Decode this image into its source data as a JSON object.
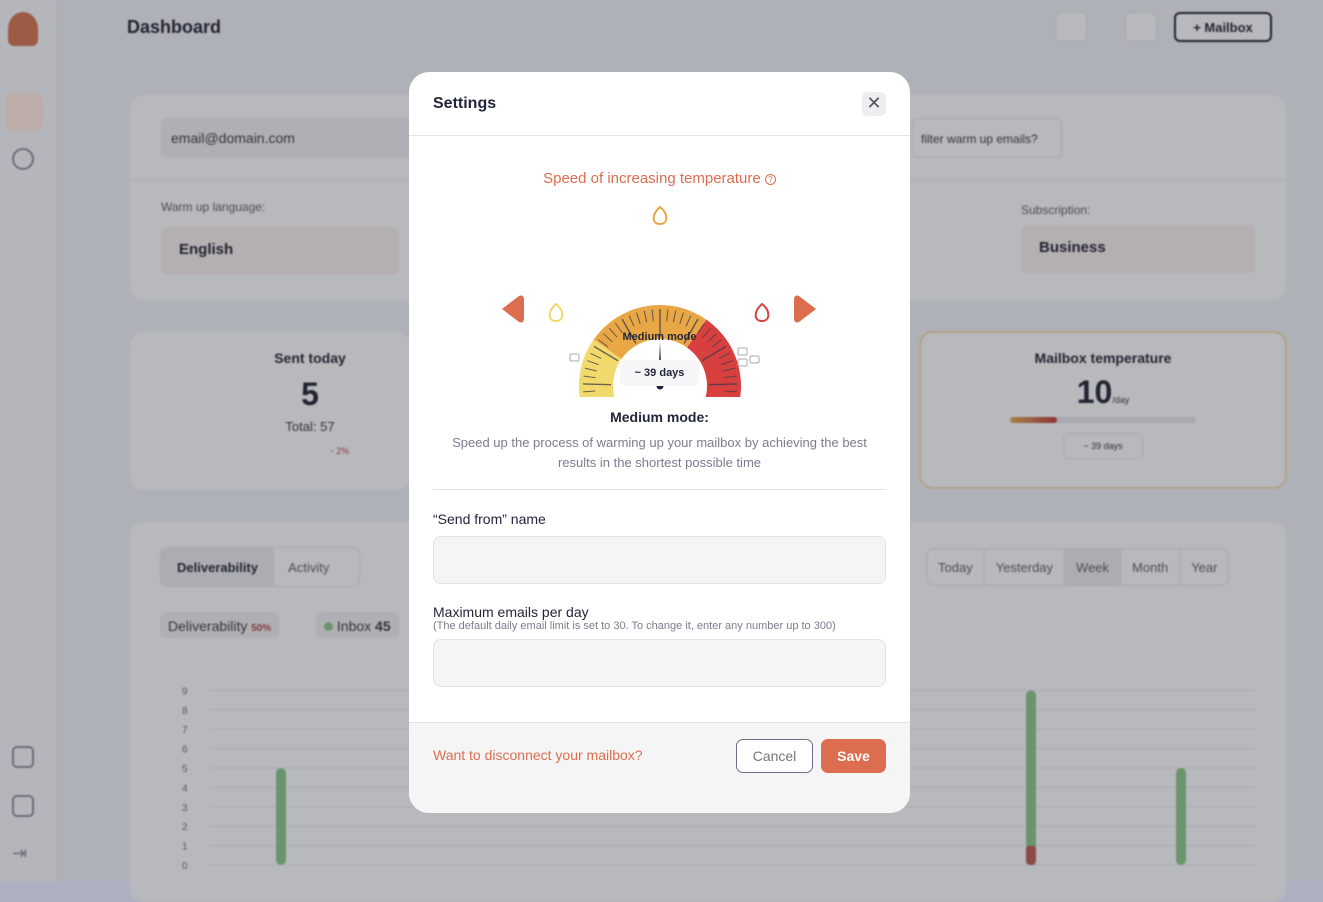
{
  "header": {
    "title": "Dashboard",
    "add_mailbox": "+ Mailbox"
  },
  "mailbox": {
    "email": "email@domain.com",
    "filter_question": "filter warm up emails?"
  },
  "settings_row": {
    "language_label": "Warm up language:",
    "language": "English",
    "subscription_label": "Subscription:",
    "subscription": "Business"
  },
  "stats": {
    "sent_label": "Sent today",
    "sent_value": "5",
    "total": "Total: 57",
    "trend": "- 2%",
    "temp_label": "Mailbox temperature",
    "temp_value": "10",
    "temp_unit": "/day",
    "temp_days": "~ 39 days",
    "temp_progress": 0.25
  },
  "chart_tabs": [
    "Deliverability",
    "Activity"
  ],
  "period_tabs": [
    "Today",
    "Yesterday",
    "Week",
    "Month",
    "Year"
  ],
  "legend": {
    "deliverability_label": "Deliverability",
    "deliverability_value": "50%",
    "inbox_label": "Inbox",
    "inbox_value": "45"
  },
  "chart_data": {
    "type": "bar",
    "y_ticks": [
      "0",
      "1",
      "2",
      "3",
      "4",
      "5",
      "6",
      "7",
      "8",
      "9"
    ],
    "ylim": [
      0,
      9
    ],
    "inbox_values": [
      5,
      null,
      null,
      null,
      null,
      8,
      5
    ],
    "spam_values": [
      0,
      null,
      null,
      null,
      null,
      1,
      0
    ],
    "colors": {
      "inbox": "#7fc883",
      "spam": "#d05a5a"
    }
  },
  "modal": {
    "title": "Settings",
    "speed_title": "Speed of increasing temperature",
    "mode_label": "Medium mode",
    "days": "~ 39 days",
    "mode_heading": "Medium mode:",
    "mode_description": "Speed up the process of warming up your mailbox by achieving the best results in the shortest possible time",
    "send_from_label": "“Send from” name",
    "send_from_value": "",
    "max_label": "Maximum emails per day",
    "max_hint": "(The default daily email limit is set to 30. To change it, enter any number up to 300)",
    "max_value": "",
    "disconnect": "Want to disconnect your mailbox?",
    "cancel": "Cancel",
    "save": "Save",
    "accent": "#dc6e4f",
    "gauge_level": 0.5
  }
}
